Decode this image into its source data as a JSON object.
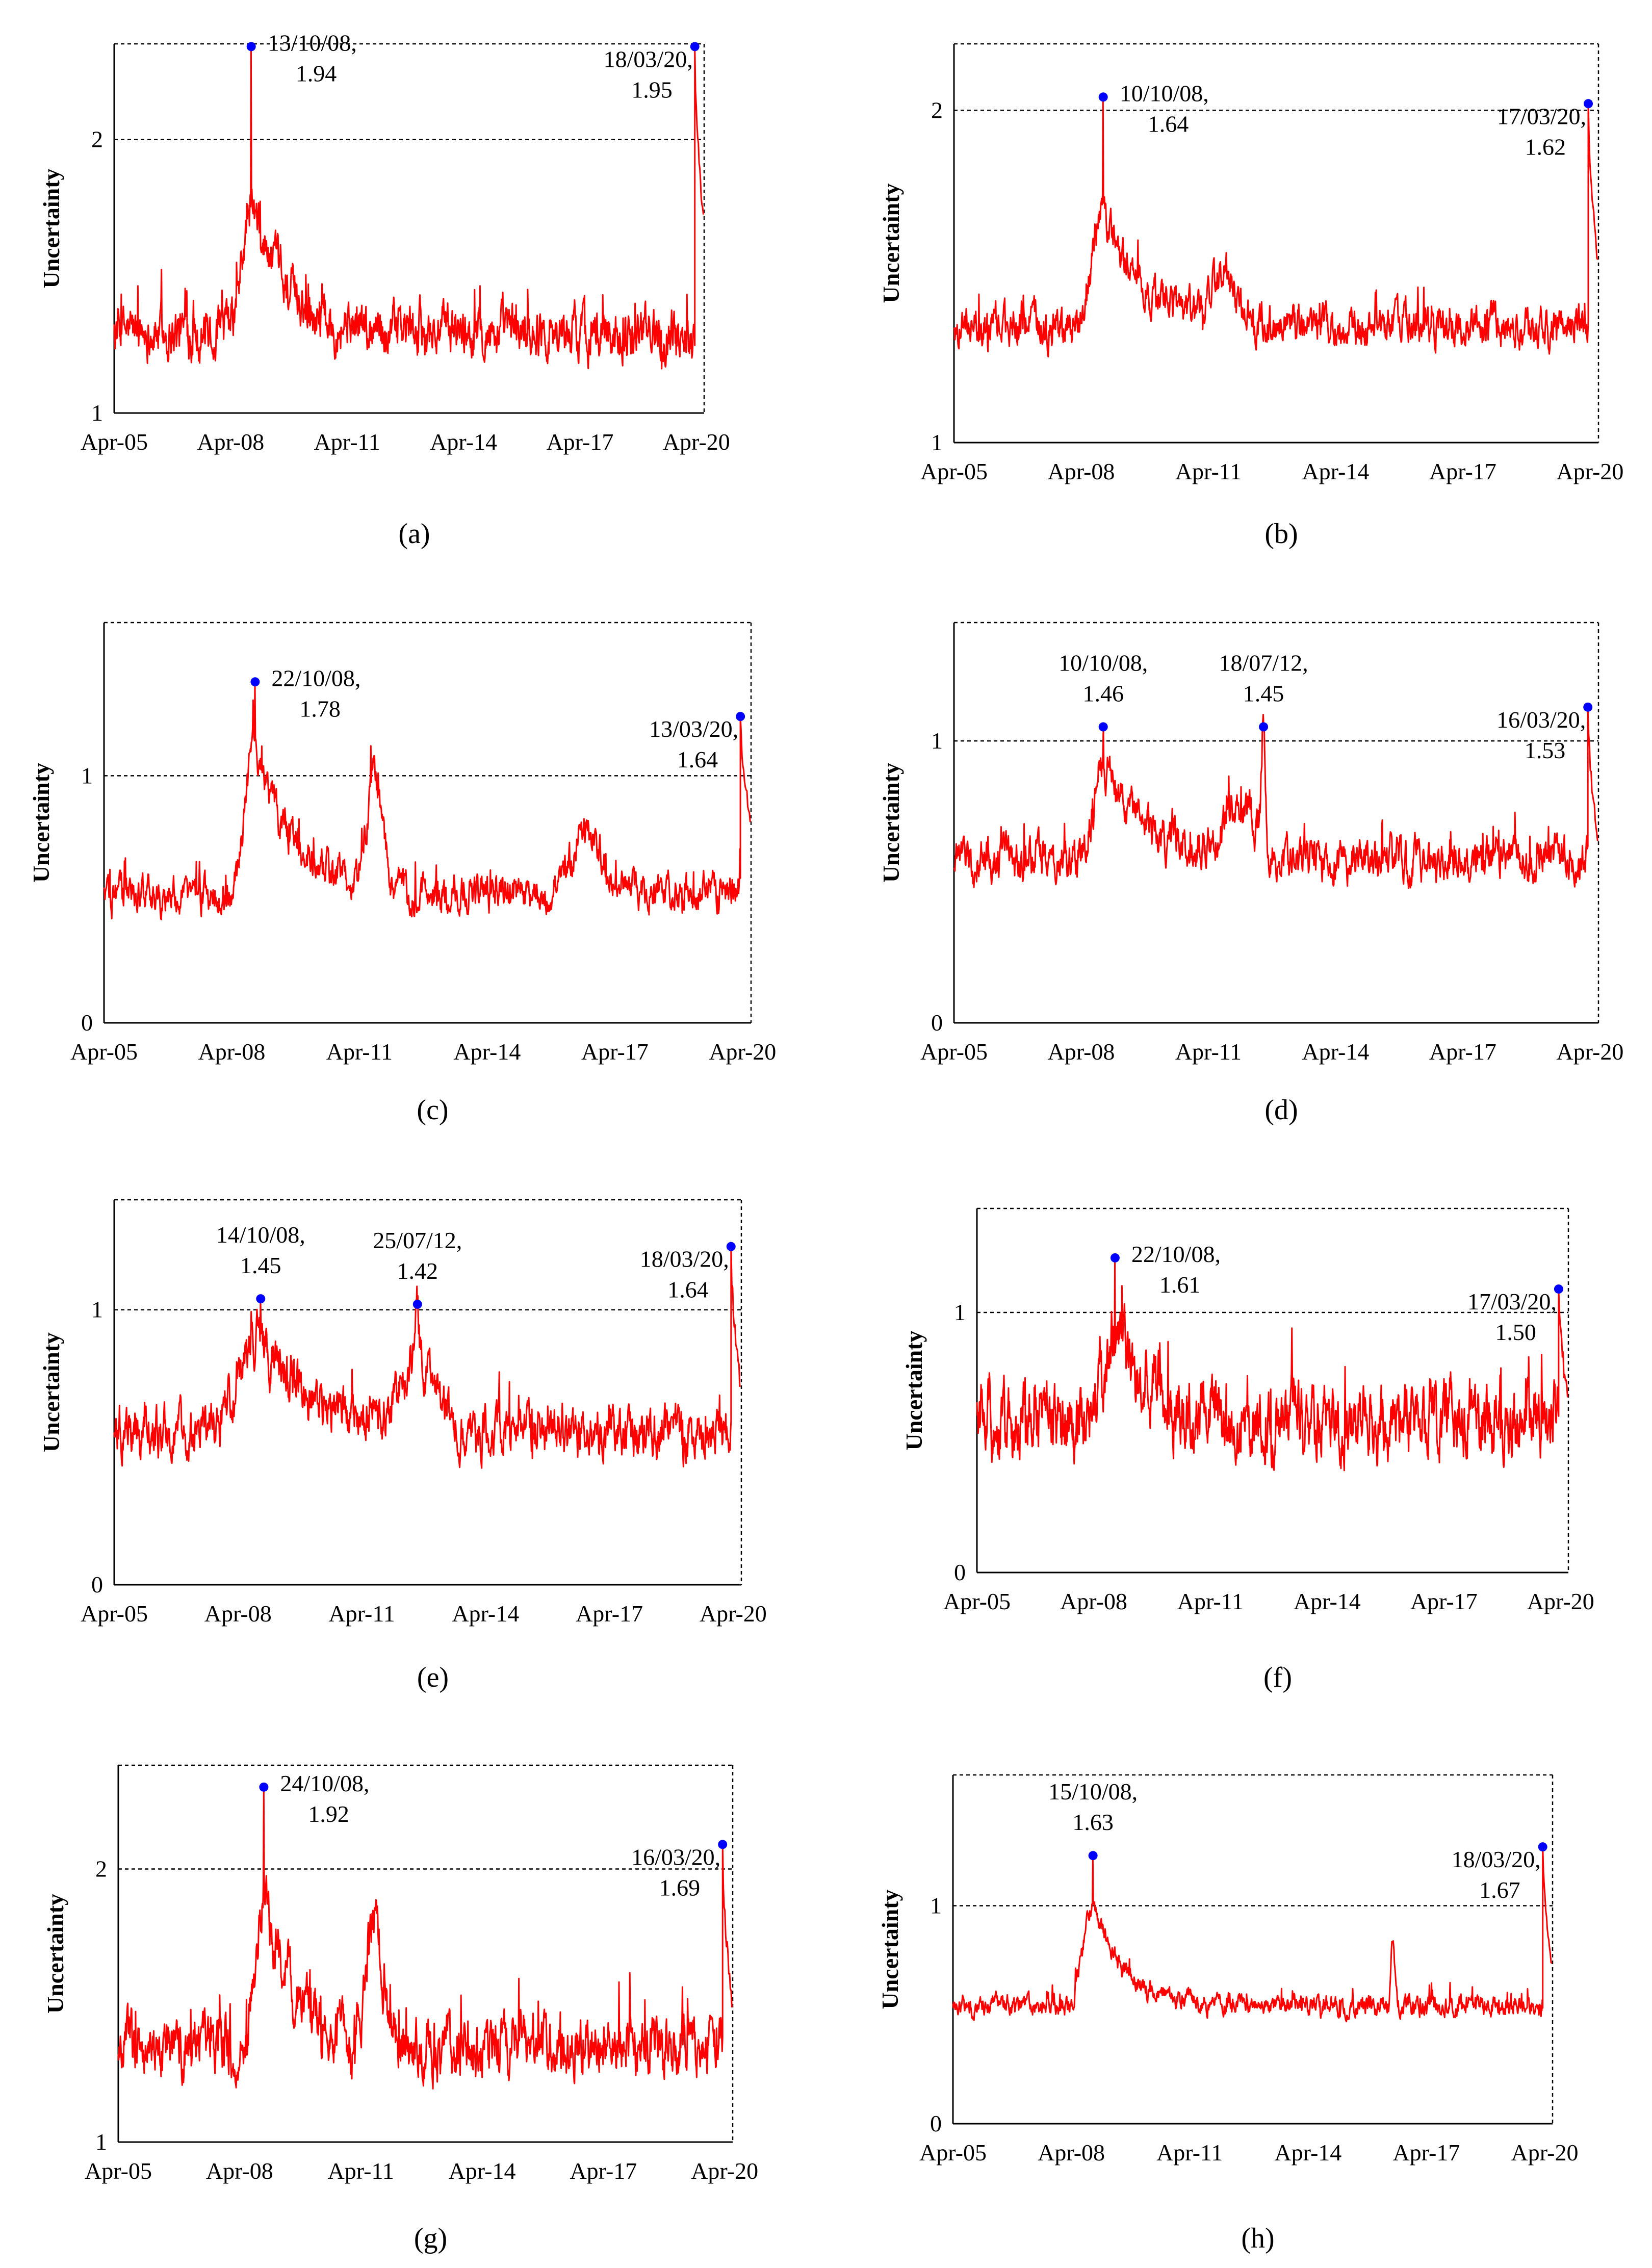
{
  "figure": {
    "ylabel": "Uncertainty",
    "xticks": [
      "Apr-05",
      "Apr-08",
      "Apr-11",
      "Apr-14",
      "Apr-17",
      "Apr-20"
    ],
    "colors": {
      "line": "#ff0000",
      "marker": "#0000ff",
      "threshold": "#000000"
    }
  },
  "chart_data": [
    {
      "id": "a",
      "type": "line",
      "caption_letter": "a",
      "ylabel": "Uncertainty",
      "ylim": [
        1,
        2.35
      ],
      "yticks": [
        "1",
        "2"
      ],
      "threshold": 2,
      "x_range": [
        2005.25,
        2020.45
      ],
      "xticks": [
        "Apr-05",
        "Apr-08",
        "Apr-11",
        "Apr-14",
        "Apr-17",
        "Apr-20"
      ],
      "base": 1.3,
      "noise": 0.06,
      "crisis": {
        "x": 2008.78,
        "y": 2.34,
        "width": 0.3,
        "decay": 0.9,
        "level": 0.45
      },
      "covid": {
        "x": 2020.21,
        "y": 2.34,
        "end": 1.7
      },
      "bumps": [],
      "peaks": [
        {
          "x": 2008.78,
          "y": 2.34,
          "date": "13/10/08,",
          "value": "1.94",
          "anchor": "start"
        },
        {
          "x": 2020.21,
          "y": 2.34,
          "date": "18/03/20,",
          "value": "1.95",
          "anchor": "end"
        }
      ]
    },
    {
      "id": "b",
      "type": "line",
      "caption_letter": "b",
      "ylabel": "Uncertainty",
      "ylim": [
        1,
        2.2
      ],
      "yticks": [
        "1",
        "2"
      ],
      "threshold": 2,
      "x_range": [
        2005.25,
        2020.45
      ],
      "xticks": [
        "Apr-05",
        "Apr-08",
        "Apr-11",
        "Apr-14",
        "Apr-17",
        "Apr-20"
      ],
      "base": 1.35,
      "noise": 0.04,
      "crisis": {
        "x": 2008.77,
        "y": 2.04,
        "width": 0.35,
        "decay": 0.9,
        "level": 0.35
      },
      "covid": {
        "x": 2020.21,
        "y": 2.02,
        "end": 1.55
      },
      "bumps": [
        {
          "x": 2011.6,
          "h": 0.18,
          "w": 0.3
        }
      ],
      "peaks": [
        {
          "x": 2008.77,
          "y": 2.04,
          "date": "10/10/08,",
          "value": "1.64",
          "anchor": "start"
        },
        {
          "x": 2020.21,
          "y": 2.02,
          "date": "17/03/20,",
          "value": "1.62",
          "anchor": "end"
        }
      ]
    },
    {
      "id": "c",
      "type": "line",
      "caption_letter": "c",
      "ylabel": "Uncertainty",
      "ylim": [
        0,
        1.62
      ],
      "yticks": [
        "0",
        "1"
      ],
      "threshold": 1,
      "x_range": [
        2005.25,
        2020.45
      ],
      "xticks": [
        "Apr-05",
        "Apr-08",
        "Apr-11",
        "Apr-14",
        "Apr-17",
        "Apr-20"
      ],
      "base": 0.52,
      "noise": 0.05,
      "crisis": {
        "x": 2008.8,
        "y": 1.38,
        "width": 0.3,
        "decay": 0.9,
        "level": 0.6
      },
      "covid": {
        "x": 2020.2,
        "y": 1.24,
        "end": 0.83
      },
      "bumps": [
        {
          "x": 2011.6,
          "h": 0.45,
          "w": 0.25
        },
        {
          "x": 2016.6,
          "h": 0.25,
          "w": 0.5
        }
      ],
      "peaks": [
        {
          "x": 2008.8,
          "y": 1.38,
          "date": "22/10/08,",
          "value": "1.78",
          "anchor": "start"
        },
        {
          "x": 2020.2,
          "y": 1.24,
          "date": "13/03/20,",
          "value": "1.64",
          "anchor": "end"
        }
      ]
    },
    {
      "id": "d",
      "type": "line",
      "caption_letter": "d",
      "ylabel": "Uncertainty",
      "ylim": [
        0,
        1.42
      ],
      "yticks": [
        "0",
        "1"
      ],
      "threshold": 1,
      "x_range": [
        2005.25,
        2020.45
      ],
      "xticks": [
        "Apr-05",
        "Apr-08",
        "Apr-11",
        "Apr-14",
        "Apr-17",
        "Apr-20"
      ],
      "base": 0.58,
      "noise": 0.05,
      "crisis": {
        "x": 2008.77,
        "y": 1.05,
        "width": 0.3,
        "decay": 0.9,
        "level": 0.35
      },
      "covid": {
        "x": 2020.2,
        "y": 1.12,
        "end": 0.65
      },
      "bumps": [
        {
          "x": 2012.55,
          "h": 0.45,
          "w": 0.06
        },
        {
          "x": 2012.0,
          "h": 0.18,
          "w": 0.5
        }
      ],
      "peaks": [
        {
          "x": 2008.77,
          "y": 1.05,
          "date": "10/10/08,",
          "value": "1.46",
          "anchor": "middle"
        },
        {
          "x": 2012.55,
          "y": 1.05,
          "date": "18/07/12,",
          "value": "1.45",
          "anchor": "middle"
        },
        {
          "x": 2020.2,
          "y": 1.12,
          "date": "16/03/20,",
          "value": "1.53",
          "anchor": "end"
        }
      ]
    },
    {
      "id": "e",
      "type": "line",
      "caption_letter": "e",
      "ylabel": "Uncertainty",
      "ylim": [
        0,
        1.4
      ],
      "yticks": [
        "0",
        "1"
      ],
      "threshold": 1,
      "x_range": [
        2005.25,
        2020.45
      ],
      "xticks": [
        "Apr-05",
        "Apr-08",
        "Apr-11",
        "Apr-14",
        "Apr-17",
        "Apr-20"
      ],
      "base": 0.55,
      "noise": 0.06,
      "crisis": {
        "x": 2008.8,
        "y": 1.04,
        "width": 0.7,
        "decay": 1.2,
        "level": 0.35
      },
      "covid": {
        "x": 2020.2,
        "y": 1.23,
        "end": 0.72
      },
      "bumps": [
        {
          "x": 2012.6,
          "h": 0.25,
          "w": 0.6
        },
        {
          "x": 2012.6,
          "h": 0.2,
          "w": 0.06
        }
      ],
      "peaks": [
        {
          "x": 2008.8,
          "y": 1.04,
          "date": "14/10/08,",
          "value": "1.45",
          "anchor": "middle"
        },
        {
          "x": 2012.6,
          "y": 1.02,
          "date": "25/07/12,",
          "value": "1.42",
          "anchor": "middle"
        },
        {
          "x": 2020.2,
          "y": 1.23,
          "date": "18/03/20,",
          "value": "1.64",
          "anchor": "end"
        }
      ]
    },
    {
      "id": "f",
      "type": "line",
      "caption_letter": "f",
      "ylabel": "Uncertainty",
      "ylim": [
        0,
        1.4
      ],
      "yticks": [
        "0",
        "1"
      ],
      "threshold": 1,
      "x_range": [
        2005.25,
        2020.45
      ],
      "xticks": [
        "Apr-05",
        "Apr-08",
        "Apr-11",
        "Apr-14",
        "Apr-17",
        "Apr-20"
      ],
      "base": 0.58,
      "noise": 0.09,
      "crisis": {
        "x": 2008.8,
        "y": 1.21,
        "width": 0.4,
        "decay": 0.9,
        "level": 0.35
      },
      "covid": {
        "x": 2020.2,
        "y": 1.09,
        "end": 0.68
      },
      "bumps": [],
      "peaks": [
        {
          "x": 2008.8,
          "y": 1.21,
          "date": "22/10/08,",
          "value": "1.61",
          "anchor": "start"
        },
        {
          "x": 2020.2,
          "y": 1.09,
          "date": "17/03/20,",
          "value": "1.50",
          "anchor": "end"
        }
      ]
    },
    {
      "id": "g",
      "type": "line",
      "caption_letter": "g",
      "ylabel": "Uncertainty",
      "ylim": [
        1,
        2.38
      ],
      "yticks": [
        "1",
        "2"
      ],
      "threshold": 2,
      "x_range": [
        2005.25,
        2020.45
      ],
      "xticks": [
        "Apr-05",
        "Apr-08",
        "Apr-11",
        "Apr-14",
        "Apr-17",
        "Apr-20"
      ],
      "base": 1.35,
      "noise": 0.07,
      "crisis": {
        "x": 2008.85,
        "y": 2.3,
        "width": 0.3,
        "decay": 0.8,
        "level": 0.55
      },
      "covid": {
        "x": 2020.2,
        "y": 2.09,
        "end": 1.5
      },
      "bumps": [
        {
          "x": 2011.6,
          "h": 0.45,
          "w": 0.25
        }
      ],
      "peaks": [
        {
          "x": 2008.85,
          "y": 2.3,
          "date": "24/10/08,",
          "value": "1.92",
          "anchor": "start"
        },
        {
          "x": 2020.2,
          "y": 2.09,
          "date": "16/03/20,",
          "value": "1.69",
          "anchor": "end"
        }
      ]
    },
    {
      "id": "h",
      "type": "line",
      "caption_letter": "h",
      "ylabel": "Uncertainty",
      "ylim": [
        0,
        1.6
      ],
      "yticks": [
        "0",
        "1"
      ],
      "threshold": 1,
      "x_range": [
        2005.25,
        2020.45
      ],
      "xticks": [
        "Apr-05",
        "Apr-08",
        "Apr-11",
        "Apr-14",
        "Apr-17",
        "Apr-20"
      ],
      "base": 0.54,
      "noise": 0.03,
      "crisis": {
        "x": 2008.8,
        "y": 1.23,
        "width": 0.35,
        "decay": 0.8,
        "level": 0.45
      },
      "covid": {
        "x": 2020.2,
        "y": 1.27,
        "end": 0.72
      },
      "bumps": [
        {
          "x": 2016.4,
          "h": 0.3,
          "w": 0.06
        }
      ],
      "peaks": [
        {
          "x": 2008.8,
          "y": 1.23,
          "date": "15/10/08,",
          "value": "1.63",
          "anchor": "middle"
        },
        {
          "x": 2020.2,
          "y": 1.27,
          "date": "18/03/20,",
          "value": "1.67",
          "anchor": "end"
        }
      ]
    }
  ]
}
